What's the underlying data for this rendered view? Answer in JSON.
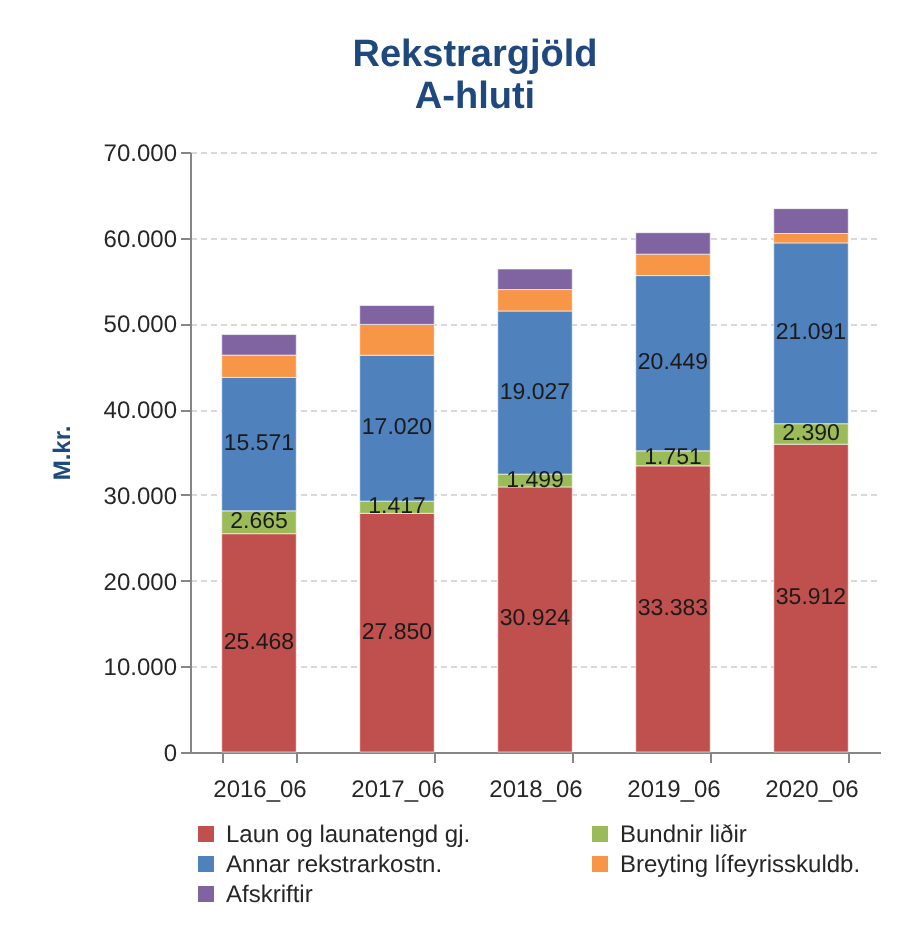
{
  "chart_data": {
    "type": "bar",
    "title": "Rekstrargjöld",
    "subtitle": "A-hluti",
    "ylabel": "M.kr.",
    "categories": [
      "2016_06",
      "2017_06",
      "2018_06",
      "2019_06",
      "2020_06"
    ],
    "stacked": true,
    "ylim": [
      0,
      70000
    ],
    "yticks": [
      0,
      {
        "value": 10000,
        "label": "10.000"
      },
      {
        "value": 20000,
        "label": "20.000"
      },
      {
        "value": 30000,
        "label": "30.000"
      },
      {
        "value": 40000,
        "label": "40.000"
      },
      {
        "value": 50000,
        "label": "50.000"
      },
      {
        "value": 60000,
        "label": "60.000"
      },
      {
        "value": 70000,
        "label": "70.000"
      }
    ],
    "grid": "y",
    "legend": "bottom",
    "series": [
      {
        "name": "Laun og launatengd gj.",
        "color": "#c0504d",
        "values": [
          25468,
          27850,
          30924,
          33383,
          35912
        ],
        "value_labels": [
          "25.468",
          "27.850",
          "30.924",
          "33.383",
          "35.912"
        ]
      },
      {
        "name": "Bundnir liðir",
        "color": "#9bbb59",
        "values": [
          2665,
          1417,
          1499,
          1751,
          2390
        ],
        "value_labels": [
          "2.665",
          "1.417",
          "1.499",
          "1.751",
          "2.390"
        ]
      },
      {
        "name": "Annar rekstrarkostn.",
        "color": "#4f81bd",
        "values": [
          15571,
          17020,
          19027,
          20449,
          21091
        ],
        "value_labels": [
          "15.571",
          "17.020",
          "19.027",
          "20.449",
          "21.091"
        ]
      },
      {
        "name": "Breyting lífeyrisskuldb.",
        "color": "#f79646",
        "values": [
          2600,
          3600,
          2500,
          2500,
          1100
        ]
      },
      {
        "name": "Afskriftir",
        "color": "#8064a2",
        "values": [
          2400,
          2200,
          2400,
          2500,
          2900
        ]
      }
    ]
  }
}
